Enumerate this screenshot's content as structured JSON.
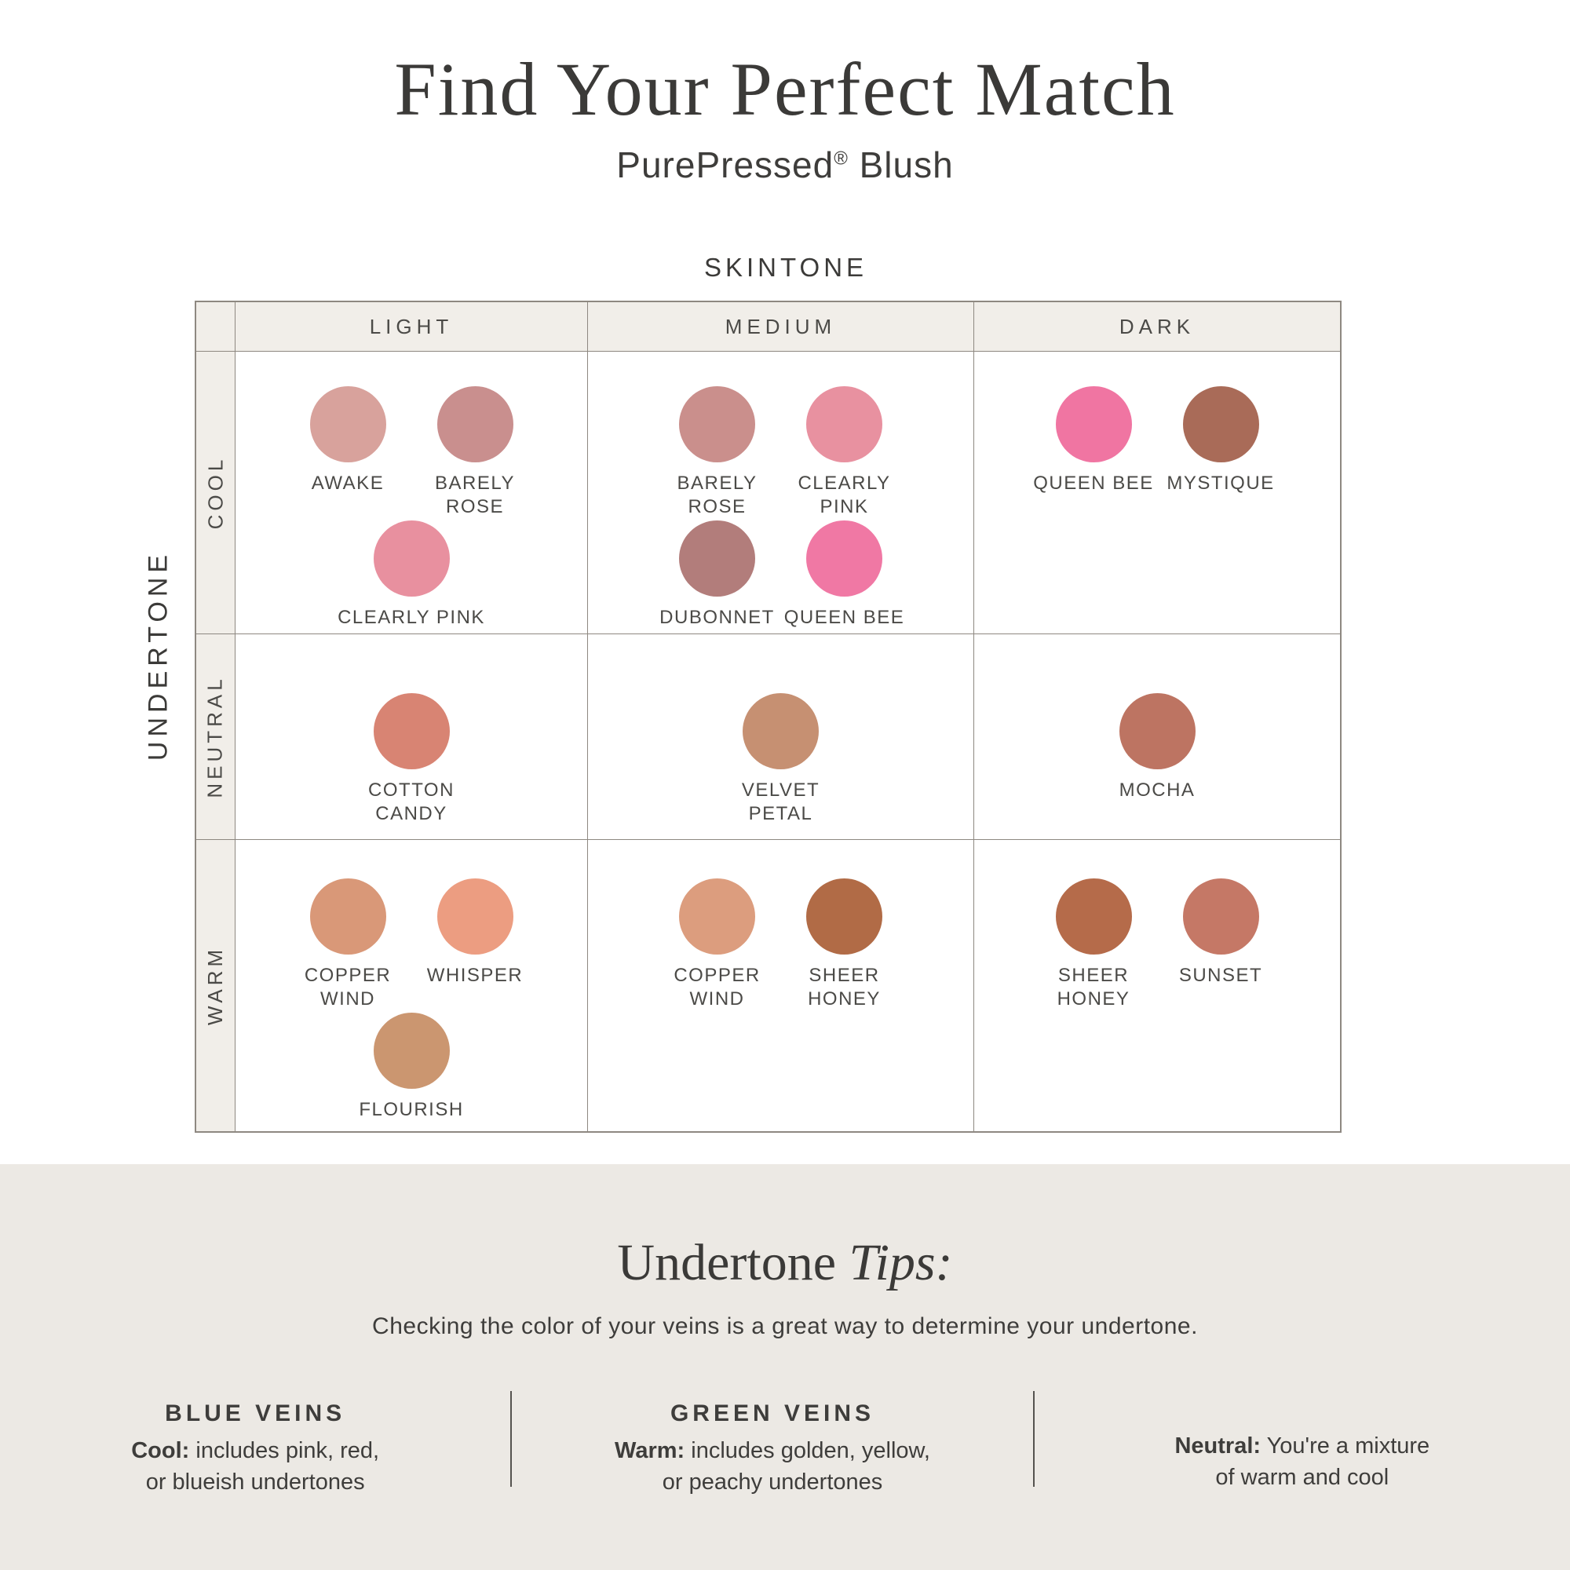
{
  "page": {
    "title": "Find Your Perfect Match",
    "subtitle": {
      "brand": "PurePressed",
      "reg": "®",
      "product": " Blush"
    }
  },
  "matrix": {
    "column_axis": "SKINTONE",
    "row_axis": "UNDERTONE",
    "columns": [
      "LIGHT",
      "MEDIUM",
      "DARK"
    ],
    "rows": [
      "COOL",
      "NEUTRAL",
      "WARM"
    ],
    "cells": [
      {
        "id": "cool-light",
        "groups": [
          [
            {
              "label_lines": [
                "AWAKE"
              ],
              "color": "#d8a29c"
            },
            {
              "label_lines": [
                "BARELY",
                "ROSE"
              ],
              "color": "#c98f8e"
            }
          ],
          [
            {
              "label_lines": [
                "CLEARLY PINK"
              ],
              "color": "#e8909f"
            }
          ]
        ]
      },
      {
        "id": "cool-medium",
        "groups": [
          [
            {
              "label_lines": [
                "BARELY",
                "ROSE"
              ],
              "color": "#ca8f8c"
            },
            {
              "label_lines": [
                "CLEARLY",
                "PINK"
              ],
              "color": "#e891a0"
            }
          ],
          [
            {
              "label_lines": [
                "DUBONNET"
              ],
              "color": "#b27d7b"
            },
            {
              "label_lines": [
                "QUEEN BEE"
              ],
              "color": "#f078a4"
            }
          ]
        ]
      },
      {
        "id": "cool-dark",
        "groups": [
          [
            {
              "label_lines": [
                "QUEEN BEE"
              ],
              "color": "#f075a2"
            },
            {
              "label_lines": [
                "MYSTIQUE"
              ],
              "color": "#a96b58"
            }
          ]
        ]
      },
      {
        "id": "neutral-light",
        "groups": [
          [
            {
              "label_lines": [
                "COTTON",
                "CANDY"
              ],
              "color": "#d88473"
            }
          ]
        ]
      },
      {
        "id": "neutral-medium",
        "groups": [
          [
            {
              "label_lines": [
                "VELVET",
                "PETAL"
              ],
              "color": "#c69072"
            }
          ]
        ]
      },
      {
        "id": "neutral-dark",
        "groups": [
          [
            {
              "label_lines": [
                "MOCHA"
              ],
              "color": "#bd7462"
            }
          ]
        ]
      },
      {
        "id": "warm-light",
        "groups": [
          [
            {
              "label_lines": [
                "COPPER",
                "WIND"
              ],
              "color": "#d99878"
            },
            {
              "label_lines": [
                "WHISPER"
              ],
              "color": "#ec9d81"
            }
          ],
          [
            {
              "label_lines": [
                "FLOURISH"
              ],
              "color": "#cb9670"
            }
          ]
        ]
      },
      {
        "id": "warm-medium",
        "groups": [
          [
            {
              "label_lines": [
                "COPPER",
                "WIND"
              ],
              "color": "#dc9d7e"
            },
            {
              "label_lines": [
                "SHEER",
                "HONEY"
              ],
              "color": "#b16b46"
            }
          ]
        ]
      },
      {
        "id": "warm-dark",
        "groups": [
          [
            {
              "label_lines": [
                "SHEER",
                "HONEY"
              ],
              "color": "#b56b4a"
            },
            {
              "label_lines": [
                "SUNSET"
              ],
              "color": "#c57866"
            }
          ]
        ]
      }
    ]
  },
  "tips": {
    "heading_normal": "Undertone ",
    "heading_italic": "Tips:",
    "intro": "Checking the color of your veins is a great way to determine your undertone.",
    "columns": [
      {
        "heading": "BLUE VEINS",
        "lead": "Cool:",
        "line1": " includes pink, red,",
        "line2": "or blueish undertones"
      },
      {
        "heading": "GREEN VEINS",
        "lead": "Warm:",
        "line1": " includes golden, yellow,",
        "line2": "or peachy undertones"
      },
      {
        "heading": "",
        "lead": "Neutral:",
        "line1": " You're a mixture",
        "line2": "of warm and cool"
      }
    ]
  },
  "theme": {
    "band_background": "#ece9e4",
    "grid_line": "#8e8881",
    "header_cell_background": "#f1eee9",
    "text": "#3e3d3b"
  }
}
